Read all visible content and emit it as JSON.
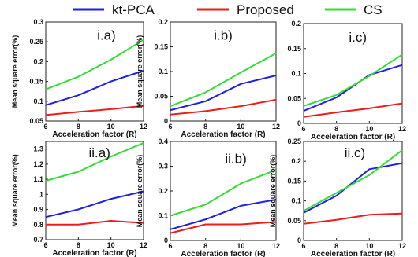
{
  "legend": [
    {
      "name": "kt-PCA",
      "color": "#1f1fe0"
    },
    {
      "name": "Proposed",
      "color": "#ee1c1c"
    },
    {
      "name": "CS",
      "color": "#33dd33"
    }
  ],
  "chart_data": [
    {
      "type": "line",
      "title": "i.a)",
      "xlabel": "Acceleration factor (R)",
      "ylabel": "Mean square error(%)",
      "x": [
        6,
        8,
        10,
        12
      ],
      "xticks": [
        "6",
        "8",
        "10",
        "12"
      ],
      "ylim": [
        0.05,
        0.3
      ],
      "yticks": [
        "0.05",
        "0.1",
        "0.15",
        "0.2",
        "0.25",
        "0.3"
      ],
      "series": [
        {
          "name": "kt-PCA",
          "color": "#1f1fe0",
          "values": [
            0.09,
            0.115,
            0.15,
            0.177
          ]
        },
        {
          "name": "Proposed",
          "color": "#ee1c1c",
          "values": [
            0.065,
            0.073,
            0.08,
            0.088
          ]
        },
        {
          "name": "CS",
          "color": "#33dd33",
          "values": [
            0.13,
            0.162,
            0.205,
            0.255
          ]
        }
      ]
    },
    {
      "type": "line",
      "title": "i.b)",
      "xlabel": "Acceleration factor (R)",
      "ylabel": "Mean square error(%)",
      "x": [
        6,
        8,
        10,
        12
      ],
      "xticks": [
        "6",
        "8",
        "10",
        "12"
      ],
      "ylim": [
        0,
        0.2
      ],
      "yticks": [
        "0",
        "0.05",
        "0.1",
        "0.15",
        "0.2"
      ],
      "series": [
        {
          "name": "kt-PCA",
          "color": "#1f1fe0",
          "values": [
            0.022,
            0.04,
            0.075,
            0.092
          ]
        },
        {
          "name": "Proposed",
          "color": "#ee1c1c",
          "values": [
            0.013,
            0.02,
            0.03,
            0.043
          ]
        },
        {
          "name": "CS",
          "color": "#33dd33",
          "values": [
            0.03,
            0.058,
            0.098,
            0.137
          ]
        }
      ]
    },
    {
      "type": "line",
      "title": "i.c)",
      "xlabel": "Acceleration factor (R)",
      "ylabel": "",
      "x": [
        6,
        8,
        10,
        12
      ],
      "xticks": [
        "6",
        "8",
        "10",
        "12"
      ],
      "ylim": [
        0,
        0.2
      ],
      "yticks": [
        "0",
        "0.05",
        "0.1",
        "0.15",
        "0.2"
      ],
      "series": [
        {
          "name": "kt-PCA",
          "color": "#1f1fe0",
          "values": [
            0.025,
            0.052,
            0.097,
            0.117
          ]
        },
        {
          "name": "Proposed",
          "color": "#ee1c1c",
          "values": [
            0.013,
            0.022,
            0.03,
            0.04
          ]
        },
        {
          "name": "CS",
          "color": "#33dd33",
          "values": [
            0.035,
            0.057,
            0.095,
            0.138
          ]
        }
      ]
    },
    {
      "type": "line",
      "title": "ii.a)",
      "xlabel": "Acceleration factor (R)",
      "ylabel": "Mean square error(%)",
      "x": [
        6,
        8,
        10,
        12
      ],
      "xticks": [
        "6",
        "8",
        "10",
        "12"
      ],
      "ylim": [
        0.7,
        1.35
      ],
      "yticks": [
        "0.7",
        "0.8",
        "0.9",
        "1",
        "1.1",
        "1.2",
        "1.3"
      ],
      "series": [
        {
          "name": "kt-PCA",
          "color": "#1f1fe0",
          "values": [
            0.85,
            0.9,
            0.97,
            1.02
          ]
        },
        {
          "name": "Proposed",
          "color": "#ee1c1c",
          "values": [
            0.8,
            0.8,
            0.825,
            0.81
          ]
        },
        {
          "name": "CS",
          "color": "#33dd33",
          "values": [
            1.09,
            1.15,
            1.25,
            1.34
          ]
        }
      ]
    },
    {
      "type": "line",
      "title": "ii.b)",
      "xlabel": "Acceleration factor (R)",
      "ylabel": "Mean square error(%)",
      "x": [
        6,
        8,
        10,
        12
      ],
      "xticks": [
        "6",
        "8",
        "10",
        "12"
      ],
      "ylim": [
        0,
        0.4
      ],
      "yticks": [
        "0",
        "0.1",
        "0.2",
        "0.3",
        "0.4"
      ],
      "series": [
        {
          "name": "kt-PCA",
          "color": "#1f1fe0",
          "values": [
            0.045,
            0.085,
            0.14,
            0.165
          ]
        },
        {
          "name": "Proposed",
          "color": "#ee1c1c",
          "values": [
            0.03,
            0.065,
            0.065,
            0.075
          ]
        },
        {
          "name": "CS",
          "color": "#33dd33",
          "values": [
            0.1,
            0.145,
            0.23,
            0.285
          ]
        }
      ]
    },
    {
      "type": "line",
      "title": "ii.c)",
      "xlabel": "Acceleration factor (R)",
      "ylabel": "Mean square error(%)",
      "x": [
        6,
        8,
        10,
        12
      ],
      "xticks": [
        "6",
        "8",
        "10",
        "12"
      ],
      "ylim": [
        0,
        0.25
      ],
      "yticks": [
        "0",
        "0.05",
        "0.1",
        "0.15",
        "0.2",
        "0.25"
      ],
      "series": [
        {
          "name": "kt-PCA",
          "color": "#1f1fe0",
          "values": [
            0.07,
            0.113,
            0.18,
            0.195
          ]
        },
        {
          "name": "Proposed",
          "color": "#ee1c1c",
          "values": [
            0.042,
            0.052,
            0.065,
            0.068
          ]
        },
        {
          "name": "CS",
          "color": "#33dd33",
          "values": [
            0.075,
            0.12,
            0.165,
            0.228
          ]
        }
      ]
    }
  ]
}
